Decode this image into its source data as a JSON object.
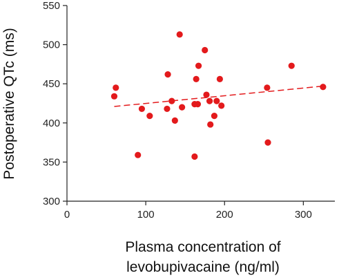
{
  "chart_data": {
    "type": "scatter",
    "title": "",
    "xlabel": [
      "Plasma concentration of",
      "levobupivacaine (ng/ml)"
    ],
    "ylabel": "Postoperative QTc (ms)",
    "xlim": [
      0,
      340
    ],
    "ylim": [
      300,
      550
    ],
    "xticks": [
      0,
      100,
      200,
      300
    ],
    "yticks": [
      300,
      350,
      400,
      450,
      500,
      550
    ],
    "x_tick_labels": [
      "0",
      "100",
      "200",
      "300"
    ],
    "y_tick_labels": [
      "300",
      "350",
      "400",
      "450",
      "500",
      "550"
    ],
    "grid": false,
    "marker_color": "#e31a1c",
    "trendline_color": "#e31a1c",
    "trendline_style": "dashed",
    "points": [
      {
        "x": 60,
        "y": 434
      },
      {
        "x": 62,
        "y": 445
      },
      {
        "x": 90,
        "y": 359
      },
      {
        "x": 95,
        "y": 418
      },
      {
        "x": 105,
        "y": 409
      },
      {
        "x": 127,
        "y": 418
      },
      {
        "x": 128,
        "y": 462
      },
      {
        "x": 133,
        "y": 428
      },
      {
        "x": 137,
        "y": 403
      },
      {
        "x": 143,
        "y": 513
      },
      {
        "x": 146,
        "y": 420
      },
      {
        "x": 162,
        "y": 357
      },
      {
        "x": 162,
        "y": 424
      },
      {
        "x": 164,
        "y": 456
      },
      {
        "x": 166,
        "y": 424
      },
      {
        "x": 167,
        "y": 473
      },
      {
        "x": 175,
        "y": 493
      },
      {
        "x": 177,
        "y": 436
      },
      {
        "x": 181,
        "y": 428
      },
      {
        "x": 182,
        "y": 398
      },
      {
        "x": 187,
        "y": 409
      },
      {
        "x": 190,
        "y": 428
      },
      {
        "x": 194,
        "y": 456
      },
      {
        "x": 196,
        "y": 422
      },
      {
        "x": 254,
        "y": 445
      },
      {
        "x": 255,
        "y": 375
      },
      {
        "x": 285,
        "y": 473
      },
      {
        "x": 325,
        "y": 446
      }
    ],
    "trendline": {
      "x": [
        60,
        325
      ],
      "y": [
        421,
        447
      ]
    }
  }
}
